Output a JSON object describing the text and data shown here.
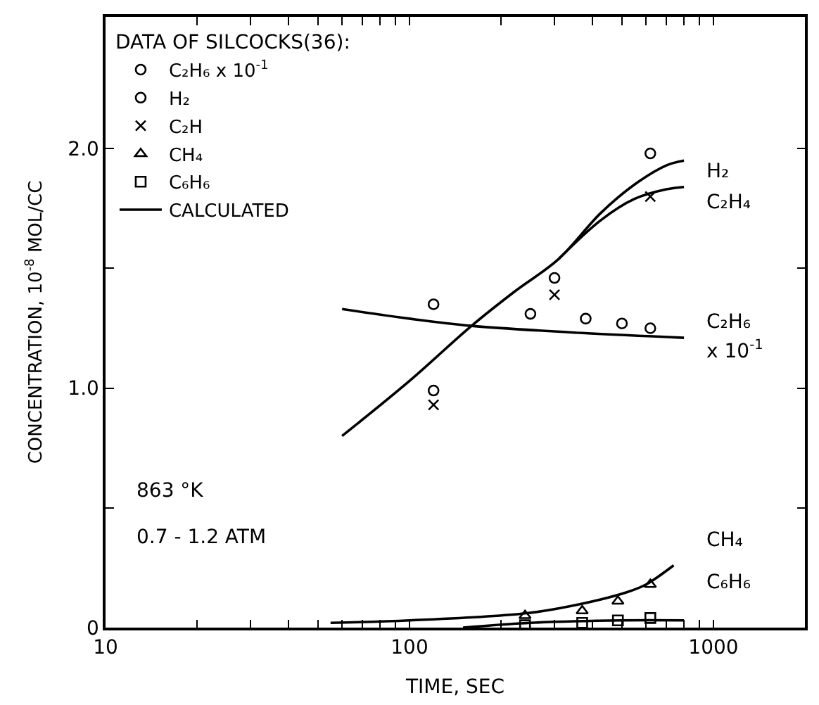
{
  "chart_data": {
    "type": "scatter",
    "xlabel": "TIME, SEC",
    "ylabel": "CONCENTRATION, 10$^{-8}$ MOL/CC",
    "legend_title": "DATA OF SILCOCKS(36):",
    "legend": "top left",
    "log": "x",
    "xlim": [
      10,
      2000
    ],
    "ylim": [
      0,
      2.55
    ],
    "xticks": [
      10,
      {
        "value": 20,
        "label": null
      },
      {
        "value": 30,
        "label": null
      },
      {
        "value": 40,
        "label": null
      },
      {
        "value": 50,
        "label": null
      },
      {
        "value": 60,
        "label": null
      },
      {
        "value": 70,
        "label": null
      },
      {
        "value": 80,
        "label": null
      },
      {
        "value": 90,
        "label": null
      },
      100,
      {
        "value": 200,
        "label": null
      },
      {
        "value": 300,
        "label": null
      },
      {
        "value": 400,
        "label": null
      },
      {
        "value": 500,
        "label": null
      },
      {
        "value": 600,
        "label": null
      },
      {
        "value": 700,
        "label": null
      },
      {
        "value": 800,
        "label": null
      },
      {
        "value": 900,
        "label": null
      },
      1000
    ],
    "yticks": [
      0,
      {
        "value": 0.5,
        "label": null
      },
      {
        "value": 1.0,
        "label": "1.0"
      },
      {
        "value": 1.5,
        "label": null
      },
      {
        "value": 2.0,
        "label": "2.0"
      }
    ],
    "series": [
      {
        "name": "C₂H₆ x 10$^{-1}$",
        "marker": "circle",
        "color": "#000000",
        "x": [
          120,
          250,
          380,
          500,
          620
        ],
        "values": [
          1.35,
          1.31,
          1.29,
          1.27,
          1.25
        ]
      },
      {
        "name": "H₂",
        "marker": "circle",
        "color": "#000000",
        "x": [
          120,
          300,
          620
        ],
        "values": [
          0.99,
          1.46,
          1.98
        ]
      },
      {
        "name": "C₂H",
        "marker": "cross",
        "color": "#000000",
        "x": [
          120,
          300,
          620
        ],
        "values": [
          0.93,
          1.39,
          1.8
        ]
      },
      {
        "name": "CH₄",
        "marker": "triangle",
        "color": "#000000",
        "x": [
          240,
          370,
          485,
          620
        ],
        "values": [
          0.05,
          0.07,
          0.11,
          0.18
        ]
      },
      {
        "name": "C₆H₆",
        "marker": "square",
        "color": "#000000",
        "x": [
          240,
          370,
          485,
          620
        ],
        "values": [
          0.01,
          0.02,
          0.03,
          0.04
        ]
      },
      {
        "name": "CALCULATED",
        "type": "line",
        "color": "#000000",
        "x": [
          60,
          100,
          160,
          220,
          310,
          425,
          550,
          700,
          800
        ],
        "values": [
          0.8,
          1.03,
          1.26,
          1.4,
          1.54,
          1.73,
          1.85,
          1.93,
          1.95
        ]
      },
      {
        "type": "line",
        "color": "#000000",
        "x": [
          310,
          425,
          550,
          700,
          800
        ],
        "values": [
          1.54,
          1.7,
          1.79,
          1.83,
          1.84
        ]
      },
      {
        "type": "line",
        "color": "#000000",
        "x": [
          60,
          100,
          160,
          370,
          800
        ],
        "values": [
          1.33,
          1.29,
          1.26,
          1.23,
          1.21
        ]
      },
      {
        "type": "line",
        "color": "#000000",
        "x": [
          55,
          100,
          243,
          370,
          525,
          600,
          740
        ],
        "values": [
          0.02,
          0.03,
          0.06,
          0.1,
          0.15,
          0.18,
          0.26
        ]
      },
      {
        "type": "line",
        "color": "#000000",
        "x": [
          150,
          250,
          500,
          800
        ],
        "values": [
          0.0,
          0.02,
          0.03,
          0.03
        ]
      }
    ],
    "annotations": [
      "H₂",
      "C₂H₄",
      "C₂H₆",
      "x 10$^{-1}$",
      "CH₄",
      "C₆H₆",
      "863 °K",
      "0.7 - 1.2 ATM"
    ]
  }
}
